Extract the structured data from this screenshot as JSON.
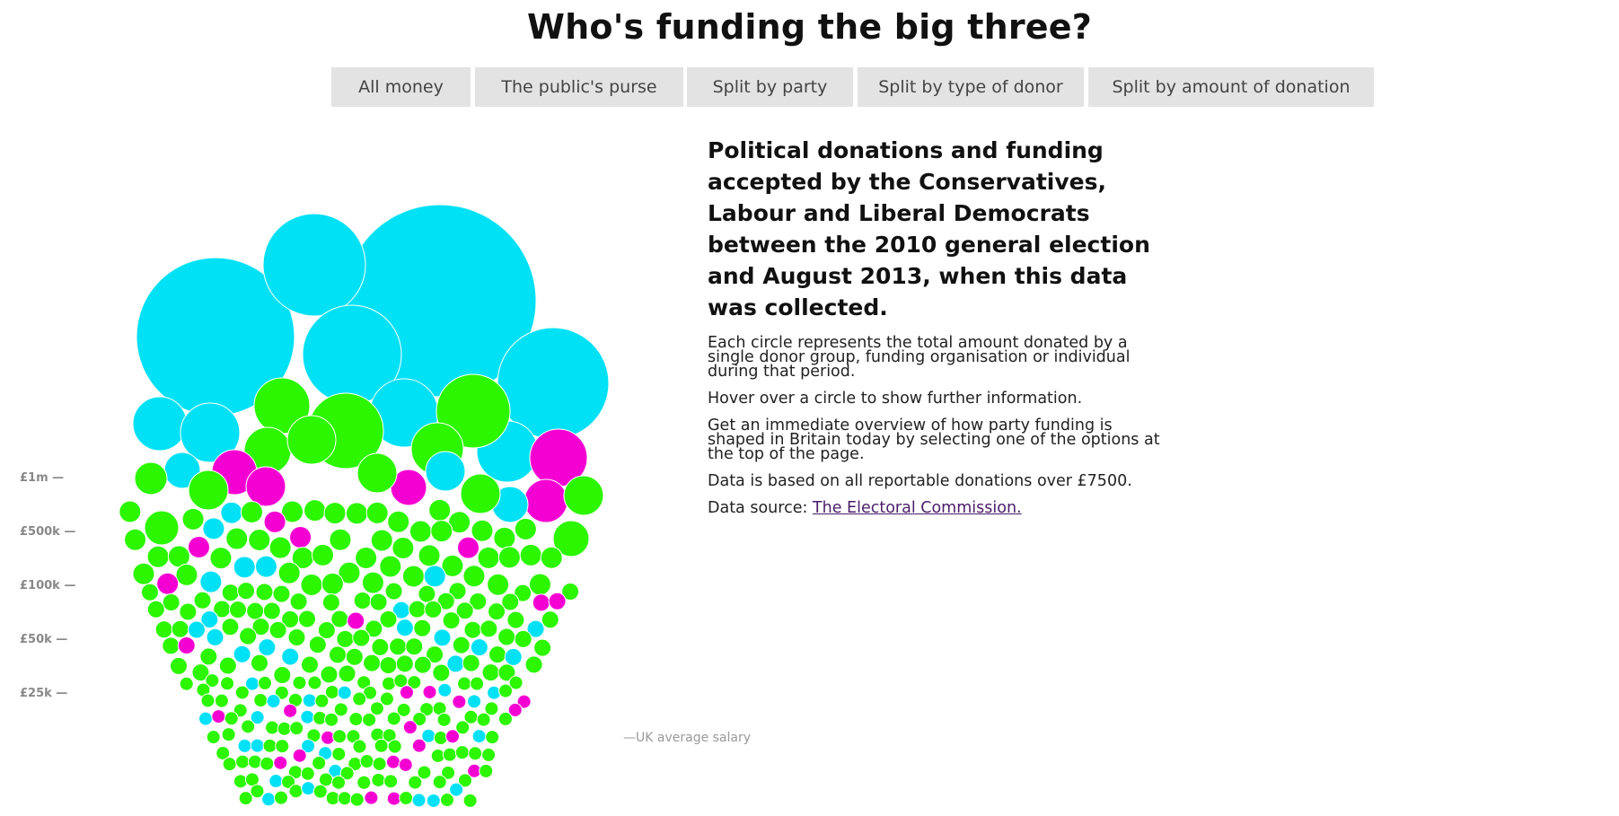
{
  "title": "Who's funding the big three?",
  "filters": [
    {
      "label": "All money",
      "name": "filter-all-money"
    },
    {
      "label": "The public's purse",
      "name": "filter-public-purse"
    },
    {
      "label": "Split by party",
      "name": "filter-split-party"
    },
    {
      "label": "Split by type of donor",
      "name": "filter-split-donor-type"
    },
    {
      "label": "Split by amount of donation",
      "name": "filter-split-amount"
    }
  ],
  "axis": {
    "ticks": [
      {
        "label": "£1m —",
        "value": 1000000
      },
      {
        "label": "£500k —",
        "value": 500000
      },
      {
        "label": "£100k —",
        "value": 100000
      },
      {
        "label": "£50k —",
        "value": 50000
      },
      {
        "label": "£25k —",
        "value": 25000
      }
    ],
    "salary_label": "—UK average salary"
  },
  "intro": {
    "heading": "Political donations and funding accepted by the Conservatives, Labour and Liberal Democrats between the 2010 general election and August 2013, when this data was collected.",
    "p1": "Each circle represents the total amount donated by a single donor group, funding organisation or individual during that period.",
    "p2": "Hover over a circle to show further information.",
    "p3": "Get an immediate overview of how party funding is shaped in Britain today by selecting one of the options at the top of the page.",
    "p4": "Data is based on all reportable donations over £7500.",
    "source_prefix": "Data source: ",
    "source_link": "The Electoral Commission."
  },
  "party_colors": {
    "conservative": "#00e1f5",
    "labour": "#2cf600",
    "liberal_democrat": "#f500d2"
  }
}
